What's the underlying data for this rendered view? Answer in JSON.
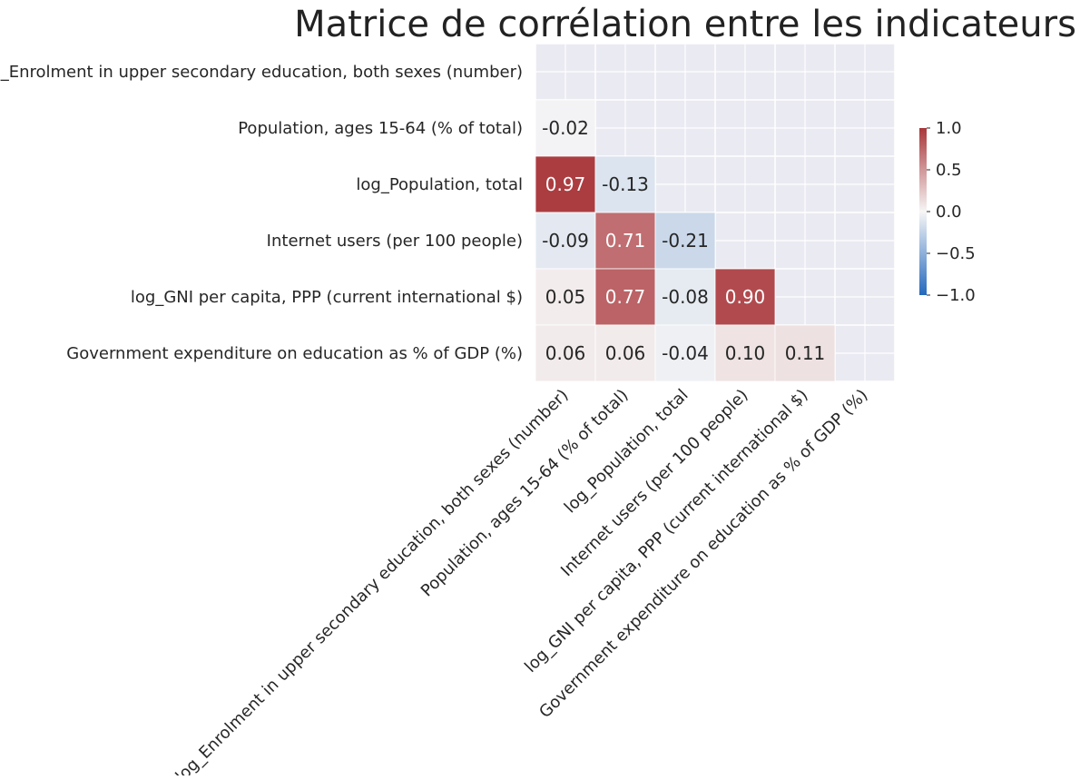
{
  "chart_data": {
    "type": "heatmap",
    "title": "Matrice de corrélation entre les indicateurs",
    "variables": [
      "log_Enrolment in upper secondary education, both sexes (number)",
      "Population, ages 15-64 (% of total)",
      "log_Population, total",
      "Internet users (per 100 people)",
      "log_GNI per capita, PPP (current international $)",
      "Government expenditure on education as % of GDP (%)"
    ],
    "matrix": [
      [
        null,
        null,
        null,
        null,
        null,
        null
      ],
      [
        -0.02,
        null,
        null,
        null,
        null,
        null
      ],
      [
        0.97,
        -0.13,
        null,
        null,
        null,
        null
      ],
      [
        -0.09,
        0.71,
        -0.21,
        null,
        null,
        null
      ],
      [
        0.05,
        0.77,
        -0.08,
        0.9,
        null,
        null
      ],
      [
        0.06,
        0.06,
        -0.04,
        0.1,
        0.11,
        null
      ]
    ],
    "mask": "upper-triangle-including-diagonal",
    "value_format": "0.00",
    "colormap": "vlag",
    "color_range": [
      -1.0,
      1.0
    ],
    "colorbar_ticks": [
      "1.0",
      "0.5",
      "0.0",
      "−0.5",
      "−1.0"
    ],
    "colors": {
      "masked_background": "#eaeaf2",
      "grid_line": "#ffffff",
      "negative_end": "#2369bd",
      "center": "#f7f6f6",
      "positive_end": "#a9373b"
    }
  }
}
